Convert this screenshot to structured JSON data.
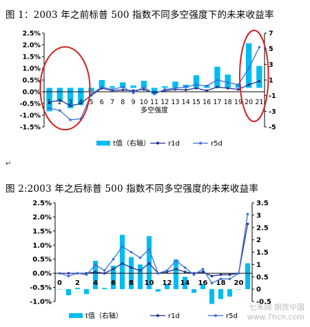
{
  "captions": {
    "fig1": "图 1：2003 年之前标普 500 指数不同多空强度下的未来收益率",
    "fig2": "图 2:2003 年之后标普 500 指数不同多空强度的未来收益率",
    "paragraph_mark": "↵"
  },
  "watermark": {
    "line1": "七禾网·期货中国",
    "line2": "www.7hcn.com"
  },
  "colors": {
    "bar": "#00bcf2",
    "r1d": "#1f2f8c",
    "r5d": "#3a6fd8",
    "circle": "#d22020",
    "axis": "#000000"
  },
  "chart_data": [
    {
      "type": "bar+line",
      "xlabel": "多空强度",
      "categories": [
        "1",
        "2",
        "3",
        "4",
        "5",
        "6",
        "7",
        "8",
        "9",
        "10",
        "11",
        "12",
        "13",
        "14",
        "15",
        "16",
        "17",
        "18",
        "19",
        "20",
        "21"
      ],
      "y_left_ticks": [
        "2.5%",
        "2.0%",
        "1.5%",
        "1.0%",
        "0.5%",
        "0.0%",
        "-0.5%",
        "-1.0%",
        "-1.5%"
      ],
      "y_right_ticks": [
        "7",
        "5",
        "3",
        "1",
        "-1",
        "-3",
        "-5"
      ],
      "ylim_left": [
        -1.5,
        2.5
      ],
      "ylim_right": [
        -5,
        7
      ],
      "legend": {
        "placement": "bottom",
        "labels": [
          "t值（右轴）",
          "r1d",
          "r5d"
        ]
      },
      "series": [
        {
          "name": "t值（右轴）",
          "kind": "bar",
          "axis": "right",
          "values": [
            -3.0,
            -1.8,
            -2.6,
            -2.2,
            -0.4,
            1.0,
            0.2,
            0.7,
            0.3,
            0.9,
            -0.8,
            0.2,
            0.8,
            0.4,
            1.6,
            0.3,
            2.7,
            1.7,
            0.5,
            5.7,
            2.8
          ]
        },
        {
          "name": "r1d",
          "kind": "line",
          "axis": "left",
          "values": [
            -0.45,
            -0.35,
            -0.6,
            -0.5,
            -0.15,
            0.15,
            0.05,
            0.08,
            0.05,
            0.1,
            -0.05,
            0.05,
            0.1,
            0.08,
            0.15,
            0.05,
            0.2,
            0.15,
            0.1,
            0.3,
            0.45
          ]
        },
        {
          "name": "r5d",
          "kind": "line",
          "axis": "left",
          "values": [
            -0.7,
            -0.8,
            -1.2,
            -1.15,
            -0.1,
            0.2,
            0.1,
            0.2,
            -0.05,
            0.2,
            -0.1,
            0.1,
            0.15,
            0.2,
            0.3,
            0.25,
            0.5,
            0.4,
            0.3,
            1.0,
            1.9
          ]
        }
      ],
      "annotations": [
        {
          "type": "circle",
          "around": [
            "1",
            "4"
          ]
        },
        {
          "type": "circle",
          "around": [
            "20",
            "21"
          ]
        }
      ]
    },
    {
      "type": "bar+line",
      "categories": [
        "0",
        "1",
        "2",
        "3",
        "4",
        "5",
        "6",
        "7",
        "8",
        "9",
        "10",
        "11",
        "12",
        "13",
        "14",
        "15",
        "16",
        "17",
        "18",
        "19",
        "20",
        "21"
      ],
      "x_tick_labels": [
        "0",
        "2",
        "4",
        "6",
        "8",
        "10",
        "12",
        "14",
        "16",
        "18",
        "20"
      ],
      "y_left_ticks": [
        "2.5%",
        "2.0%",
        "1.5%",
        "1.0%",
        "0.5%",
        "0.0%",
        "-0.5%",
        "-1.0%"
      ],
      "y_right_ticks": [
        "3.5",
        "3",
        "2.5",
        "2",
        "1.5",
        "1",
        "0.5",
        "0",
        "-0.5"
      ],
      "ylim_left": [
        -1.0,
        2.5
      ],
      "ylim_right": [
        -0.5,
        3.5
      ],
      "legend": {
        "placement": "bottom",
        "labels": [
          "t值（右轴）",
          "r1d",
          "r5d"
        ]
      },
      "series": [
        {
          "name": "t值（右轴）",
          "kind": "bar",
          "axis": "right",
          "values": [
            0.0,
            -0.25,
            0.05,
            -0.2,
            1.15,
            0.05,
            0.95,
            2.2,
            1.3,
            1.0,
            2.15,
            -0.1,
            0.2,
            1.2,
            0.5,
            -0.15,
            0.2,
            -0.6,
            -0.4,
            -0.3,
            0.0,
            1.05
          ]
        },
        {
          "name": "r1d",
          "kind": "line",
          "axis": "left",
          "values": [
            0.0,
            0.0,
            0.0,
            0.0,
            0.05,
            0.0,
            0.15,
            0.35,
            0.2,
            0.1,
            0.35,
            0.0,
            0.05,
            0.15,
            0.05,
            0.0,
            0.05,
            -0.1,
            -0.05,
            -0.05,
            0.0,
            1.75
          ]
        },
        {
          "name": "r5d",
          "kind": "line",
          "axis": "left",
          "values": [
            0.0,
            -0.1,
            0.0,
            -0.05,
            0.3,
            0.1,
            0.5,
            0.95,
            0.75,
            0.55,
            0.85,
            0.0,
            0.1,
            0.45,
            0.2,
            -0.05,
            0.15,
            -0.35,
            -0.2,
            -0.2,
            0.0,
            2.1
          ]
        }
      ]
    }
  ]
}
